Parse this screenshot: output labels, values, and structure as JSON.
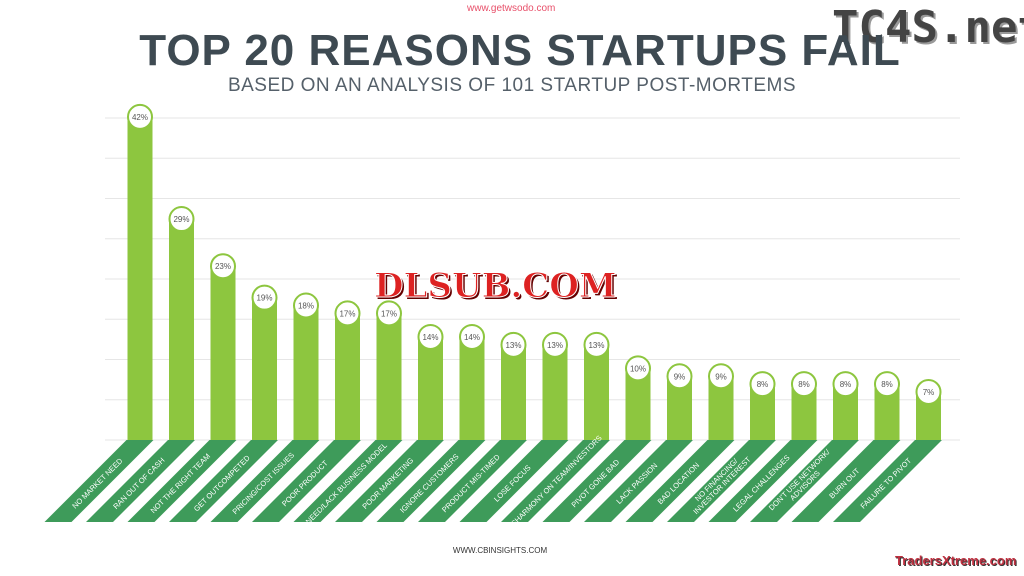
{
  "watermarks": {
    "top": "www.getwsodo.com",
    "top_right": "TC4S.net",
    "center": "DLSUB.COM",
    "bottom_right": "TradersXtreme.com"
  },
  "footer": "WWW.CBINSIGHTS.COM",
  "colors": {
    "bar": "#8dc63f",
    "label_strip": "#3e9b5a",
    "title": "#3e4a52",
    "grid": "#e6e6e6"
  },
  "chart_data": {
    "type": "bar",
    "title": "TOP 20 REASONS STARTUPS FAIL",
    "subtitle": "BASED ON AN ANALYSIS OF 101 STARTUP POST-MORTEMS",
    "categories": [
      "NO MARKET NEED",
      "RAN OUT OF CASH",
      "NOT THE RIGHT TEAM",
      "GET OUTCOMPETED",
      "PRICING/COST ISSUES",
      "POOR PRODUCT",
      "NEED/LACK BUSINESS MODEL",
      "POOR MARKETING",
      "IGNORE CUSTOMERS",
      "PRODUCT MIS-TIMED",
      "LOSE FOCUS",
      "DISHARMONY ON TEAM/INVESTORS",
      "PIVOT GONE BAD",
      "LACK PASSION",
      "BAD LOCATION",
      "NO FINANCING/ INVESTOR INTEREST",
      "LEGAL CHALLENGES",
      "DON'T USE NETWORK/ ADVISORS",
      "BURN OUT",
      "FAILURE TO PIVOT"
    ],
    "values": [
      42,
      29,
      23,
      19,
      18,
      17,
      17,
      14,
      14,
      13,
      13,
      13,
      10,
      9,
      9,
      8,
      8,
      8,
      8,
      7
    ],
    "data_labels": [
      "42%",
      "29%",
      "23%",
      "19%",
      "18%",
      "17%",
      "17%",
      "14%",
      "14%",
      "13%",
      "13%",
      "13%",
      "10%",
      "9%",
      "9%",
      "8%",
      "8%",
      "8%",
      "8%",
      "7%"
    ],
    "grid": true,
    "xlabel": "",
    "ylabel": ""
  }
}
